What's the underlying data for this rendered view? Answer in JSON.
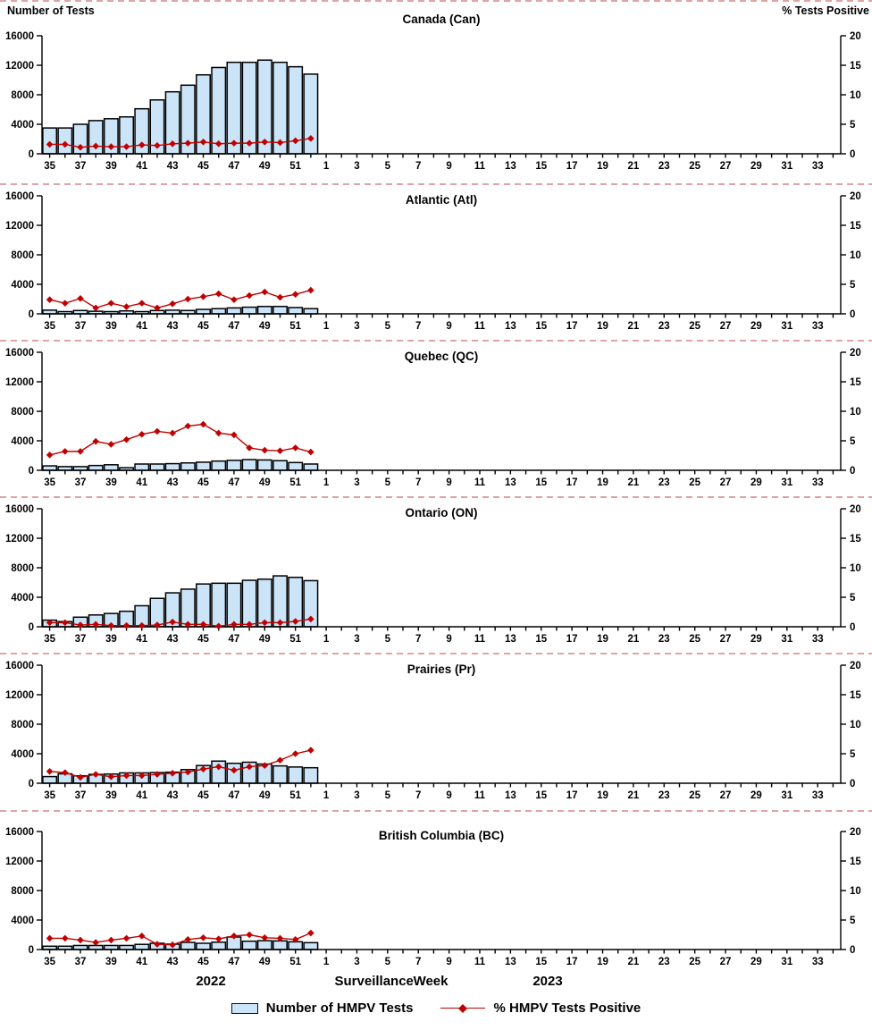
{
  "header": {
    "left_axis_title": "Number of Tests",
    "right_axis_title": "% Tests Positive"
  },
  "footer": {
    "year_left": "2022",
    "x_axis_title": "Surveillance Week",
    "year_right": "2023"
  },
  "legend": {
    "bar_label": "Number of HMPV Tests",
    "line_label": "% HMPV Tests Positive"
  },
  "chart_data": {
    "type": "bar",
    "subtype": "combo-bar-line-6-panel",
    "x_axis_label": "Surveillance Week",
    "x_weeks": [
      35,
      36,
      37,
      38,
      39,
      40,
      41,
      42,
      43,
      44,
      45,
      46,
      47,
      48,
      49,
      50,
      51,
      52,
      1,
      2,
      3,
      4,
      5,
      6,
      7,
      8,
      9,
      10,
      11,
      12,
      13,
      14,
      15,
      16,
      17,
      18,
      19,
      20,
      21,
      22,
      23,
      24,
      25,
      26,
      27,
      28,
      29,
      30,
      31,
      32,
      33,
      34
    ],
    "x_tick_labels": [
      35,
      37,
      39,
      41,
      43,
      45,
      47,
      49,
      51,
      1,
      3,
      5,
      7,
      9,
      11,
      13,
      15,
      17,
      19,
      21,
      23,
      25,
      27,
      29,
      31,
      33
    ],
    "data_weeks": [
      35,
      36,
      37,
      38,
      39,
      40,
      41,
      42,
      43,
      44,
      45,
      46,
      47,
      48,
      49,
      50,
      51,
      52
    ],
    "left_axis": {
      "label": "Number of Tests",
      "ticks": [
        "0",
        "4000",
        "8000",
        "12000",
        "16000"
      ],
      "min": 0,
      "max": 16000
    },
    "right_axis": {
      "label": "% Tests Positive",
      "ticks": [
        "0",
        "5",
        "10",
        "15",
        "20"
      ],
      "min": 0,
      "max": 20
    },
    "series_labels": {
      "bars": "Number of HMPV Tests",
      "line": "% HMPV Tests Positive"
    },
    "year_left": "2022",
    "year_right": "2023",
    "legend_position": "bottom-center",
    "grid": "off",
    "panels": [
      {
        "title": "Canada (Can)",
        "tests": [
          3500,
          3500,
          4000,
          4500,
          4750,
          5000,
          6100,
          7300,
          8400,
          9300,
          10700,
          11700,
          12400,
          12400,
          12700,
          12400,
          11800,
          10800
        ],
        "pct_positive": [
          1.6,
          1.6,
          1.1,
          1.3,
          1.2,
          1.2,
          1.5,
          1.4,
          1.7,
          1.8,
          2.0,
          1.7,
          1.8,
          1.8,
          2.0,
          1.9,
          2.2,
          2.6
        ]
      },
      {
        "title": "Atlantic (Atl)",
        "tests": [
          500,
          300,
          450,
          350,
          300,
          400,
          300,
          450,
          500,
          450,
          600,
          700,
          800,
          900,
          1000,
          1000,
          850,
          700
        ],
        "pct_positive": [
          2.4,
          1.8,
          2.6,
          1.0,
          1.8,
          1.2,
          1.8,
          1.0,
          1.7,
          2.5,
          2.9,
          3.4,
          2.4,
          3.1,
          3.7,
          2.8,
          3.3,
          4.0
        ]
      },
      {
        "title": "Quebec (QC)",
        "tests": [
          600,
          500,
          500,
          650,
          750,
          350,
          850,
          850,
          900,
          1000,
          1100,
          1250,
          1350,
          1450,
          1400,
          1300,
          1050,
          850
        ],
        "pct_positive": [
          2.6,
          3.2,
          3.2,
          4.9,
          4.4,
          5.2,
          6.1,
          6.6,
          6.3,
          7.5,
          7.8,
          6.3,
          6.0,
          3.8,
          3.4,
          3.3,
          3.8,
          3.1
        ]
      },
      {
        "title": "Ontario (ON)",
        "tests": [
          900,
          700,
          1300,
          1600,
          1800,
          2100,
          2850,
          3850,
          4600,
          5100,
          5800,
          5900,
          5900,
          6300,
          6450,
          6900,
          6700,
          6250
        ],
        "pct_positive": [
          0.7,
          0.7,
          0.3,
          0.4,
          0.2,
          0.2,
          0.2,
          0.3,
          0.8,
          0.4,
          0.4,
          0.1,
          0.4,
          0.4,
          0.7,
          0.7,
          0.9,
          1.3
        ]
      },
      {
        "title": "Prairies (Pr)",
        "tests": [
          900,
          1280,
          1000,
          1200,
          1250,
          1400,
          1400,
          1450,
          1500,
          1850,
          2400,
          3000,
          2700,
          2850,
          2600,
          2350,
          2200,
          2100
        ],
        "pct_positive": [
          2.0,
          1.8,
          1.0,
          1.5,
          1.1,
          1.3,
          1.3,
          1.5,
          1.7,
          1.9,
          2.4,
          2.8,
          2.2,
          2.8,
          3.0,
          3.9,
          5.0,
          5.6
        ]
      },
      {
        "title": "British Columbia (BC)",
        "tests": [
          450,
          450,
          550,
          550,
          550,
          550,
          700,
          850,
          730,
          970,
          850,
          1000,
          1700,
          1130,
          1200,
          1170,
          1050,
          930
        ],
        "pct_positive": [
          1.9,
          1.9,
          1.6,
          1.2,
          1.6,
          1.9,
          2.3,
          0.9,
          0.8,
          1.7,
          2.0,
          1.8,
          2.3,
          2.5,
          2.0,
          1.9,
          1.7,
          2.8
        ]
      }
    ],
    "colors": {
      "bar_fill": "#CBE4F7",
      "bar_border": "#000000",
      "line": "#C00000"
    }
  }
}
